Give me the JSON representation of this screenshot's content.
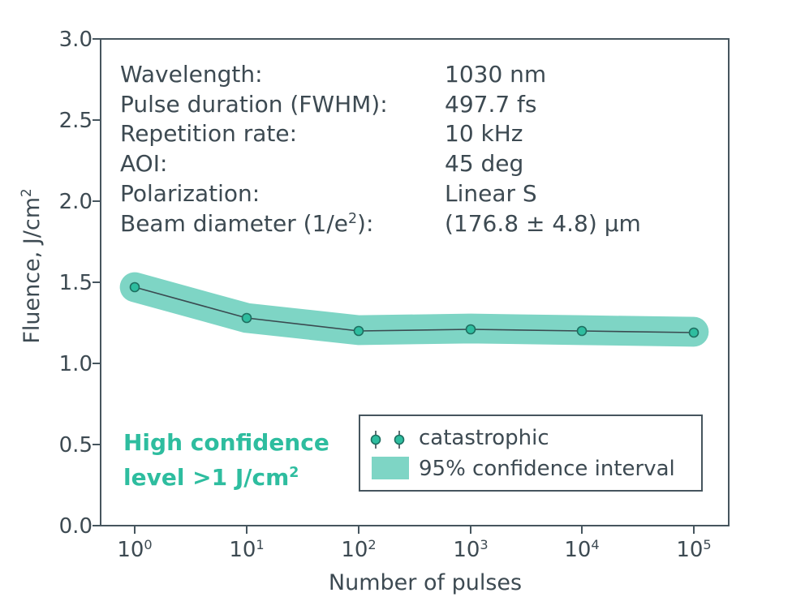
{
  "chart_data": {
    "type": "line",
    "x": [
      1,
      10,
      100,
      1000,
      10000,
      100000
    ],
    "x_tick_labels": [
      {
        "base": "10",
        "exp": "0"
      },
      {
        "base": "10",
        "exp": "1"
      },
      {
        "base": "10",
        "exp": "2"
      },
      {
        "base": "10",
        "exp": "3"
      },
      {
        "base": "10",
        "exp": "4"
      },
      {
        "base": "10",
        "exp": "5"
      }
    ],
    "x_scale": "log",
    "series": [
      {
        "name": "catastrophic",
        "values": [
          1.47,
          1.28,
          1.2,
          1.21,
          1.2,
          1.19
        ],
        "band_lower": [
          1.37,
          1.18,
          1.11,
          1.13,
          1.12,
          1.11
        ],
        "band_upper": [
          1.57,
          1.38,
          1.3,
          1.3,
          1.29,
          1.28
        ]
      }
    ],
    "band_name": "95% confidence interval",
    "xlabel": "Number of pulses",
    "ylabel": {
      "text": "Fluence, J/cm",
      "sup": "2"
    },
    "ylim": [
      0.0,
      3.0
    ],
    "yticks": [
      "0.0",
      "0.5",
      "1.0",
      "1.5",
      "2.0",
      "2.5",
      "3.0"
    ],
    "grid": false,
    "legend_position": "bottom-right",
    "legend": [
      {
        "label": "catastrophic"
      },
      {
        "label": "95% confidence interval"
      }
    ],
    "info_table": [
      {
        "label": "Wavelength:",
        "value": "1030 nm"
      },
      {
        "label": "Pulse duration (FWHM):",
        "value": "497.7 fs"
      },
      {
        "label": "Repetition rate:",
        "value": "10 kHz"
      },
      {
        "label": "AOI:",
        "value": "45 deg"
      },
      {
        "label": "Polarization:",
        "value": "Linear S"
      },
      {
        "label": "Beam diameter (1/e",
        "label_sup": "2",
        "label_after": "):",
        "value": "(176.8 ± 4.8) µm"
      }
    ],
    "annotation": {
      "line1": "High confidence",
      "line2": "level >1 J/cm",
      "line2_sup": "2"
    },
    "colors": {
      "band": "#7ed5c5",
      "marker_fill": "#2ebd9f",
      "marker_stroke": "#1e6e60",
      "line": "#3a4a50",
      "axis": "#46555e",
      "text": "#3d4a52",
      "highlight": "#2ebd9f"
    }
  }
}
